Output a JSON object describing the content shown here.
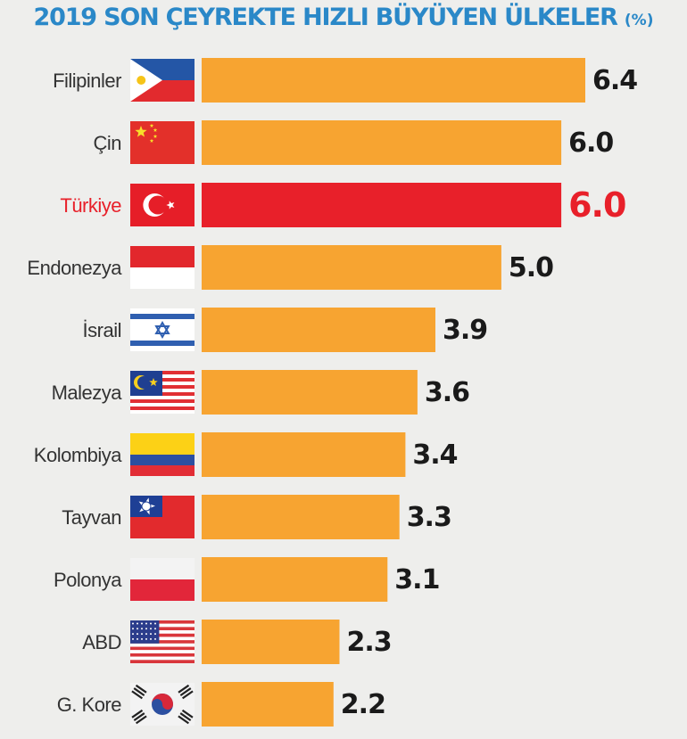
{
  "chart_data": {
    "type": "bar",
    "orientation": "horizontal",
    "title": "2019 SON ÇEYREKTE HIZLI BÜYÜYEN ÜLKELER",
    "unit": "(%)",
    "categories": [
      "Filipinler",
      "Çin",
      "Türkiye",
      "Endonezya",
      "İsrail",
      "Malezya",
      "Kolombiya",
      "Tayvan",
      "Polonya",
      "ABD",
      "G. Kore"
    ],
    "values": [
      6.4,
      6.0,
      6.0,
      5.0,
      3.9,
      3.6,
      3.4,
      3.3,
      3.1,
      2.3,
      2.2
    ],
    "value_labels": [
      "6.4",
      "6.0",
      "6.0",
      "5.0",
      "3.9",
      "3.6",
      "3.4",
      "3.3",
      "3.1",
      "2.3",
      "2.2"
    ],
    "highlight_category": "Türkiye",
    "flags": [
      "philippines-flag-icon",
      "china-flag-icon",
      "turkey-flag-icon",
      "indonesia-flag-icon",
      "israel-flag-icon",
      "malaysia-flag-icon",
      "colombia-flag-icon",
      "taiwan-flag-icon",
      "poland-flag-icon",
      "usa-flag-icon",
      "south-korea-flag-icon"
    ],
    "xlim": [
      0,
      6.4
    ],
    "colors": {
      "bar": "#f7a431",
      "highlight": "#e8202a",
      "title": "#2a88c8",
      "label": "#1a1a1a"
    }
  }
}
